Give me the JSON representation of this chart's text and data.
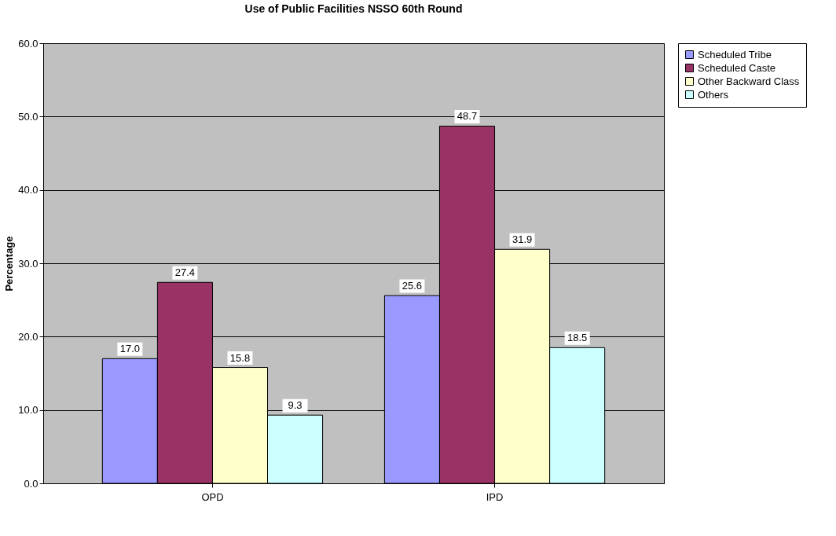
{
  "chart_data": {
    "type": "bar",
    "title": "Use of Public Facilities NSSO 60th Round",
    "ylabel": "Percentage",
    "categories": [
      "OPD",
      "IPD"
    ],
    "series": [
      {
        "name": "Scheduled Tribe",
        "color": "#9999ff",
        "values": [
          17.0,
          25.6
        ],
        "value_labels": [
          "17.0",
          "25.6"
        ]
      },
      {
        "name": "Scheduled Caste",
        "color": "#993366",
        "values": [
          27.4,
          48.7
        ],
        "value_labels": [
          "27.4",
          "48.7"
        ]
      },
      {
        "name": "Other Backward Class",
        "color": "#ffffcc",
        "values": [
          15.8,
          31.9
        ],
        "value_labels": [
          "15.8",
          "31.9"
        ]
      },
      {
        "name": "Others",
        "color": "#ccffff",
        "values": [
          9.3,
          18.5
        ],
        "value_labels": [
          "9.3",
          "18.5"
        ]
      }
    ],
    "ylim": [
      0,
      60
    ],
    "yticks": [
      {
        "value": 0,
        "label": "0.0"
      },
      {
        "value": 10,
        "label": "10.0"
      },
      {
        "value": 20,
        "label": "20.0"
      },
      {
        "value": 30,
        "label": "30.0"
      },
      {
        "value": 40,
        "label": "40.0"
      },
      {
        "value": 50,
        "label": "50.0"
      },
      {
        "value": 60,
        "label": "60.0"
      }
    ],
    "grid": "y",
    "legend": "right"
  }
}
